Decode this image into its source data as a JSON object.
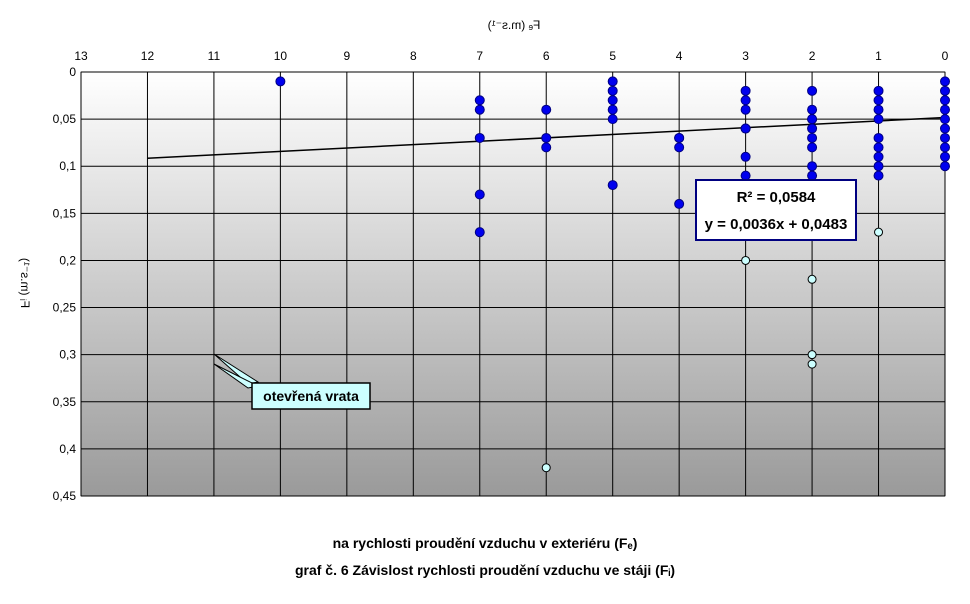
{
  "chart_data": {
    "type": "scatter",
    "x_axis_title": "Fₑ (m.s⁻¹)",
    "y_axis_title": "Fᵢ (m.s⁻¹)",
    "x_ticks": [
      "0",
      "1",
      "2",
      "3",
      "4",
      "5",
      "6",
      "7",
      "8",
      "9",
      "10",
      "11",
      "12",
      "13"
    ],
    "y_ticks": [
      "0",
      "0,05",
      "0,1",
      "0,15",
      "0,2",
      "0,25",
      "0,3",
      "0,35",
      "0,4",
      "0,45"
    ],
    "xlim": [
      0,
      13
    ],
    "ylim": [
      0,
      0.45
    ],
    "y_inverted": true,
    "x_axis_position": "top",
    "grid": true,
    "series": [
      {
        "color": "#0000ee",
        "x": [
          0,
          0,
          0,
          0,
          0,
          0,
          0,
          0,
          0,
          0,
          1,
          1,
          1,
          1,
          1,
          1,
          1,
          1,
          1,
          2,
          2,
          2,
          2,
          2,
          2,
          2,
          2,
          2,
          2,
          2,
          3,
          3,
          3,
          3,
          3,
          3,
          3,
          3,
          3,
          4,
          4,
          4,
          4,
          5,
          5,
          5,
          5,
          5,
          5,
          6,
          6,
          6,
          7,
          7,
          7,
          7,
          7,
          10
        ],
        "y": [
          0.01,
          0.02,
          0.03,
          0.04,
          0.05,
          0.06,
          0.07,
          0.08,
          0.09,
          0.1,
          0.02,
          0.03,
          0.04,
          0.05,
          0.07,
          0.08,
          0.09,
          0.1,
          0.11,
          0.02,
          0.04,
          0.05,
          0.06,
          0.07,
          0.1,
          0.12,
          0.13,
          0.05,
          0.08,
          0.11,
          0.02,
          0.03,
          0.04,
          0.06,
          0.09,
          0.11,
          0.12,
          0.13,
          0.06,
          0.07,
          0.08,
          0.14,
          0.07,
          0.01,
          0.02,
          0.03,
          0.04,
          0.05,
          0.12,
          0.04,
          0.07,
          0.08,
          0.03,
          0.04,
          0.07,
          0.13,
          0.17,
          0.01
        ]
      },
      {
        "color": "#ccffff",
        "x": [
          1,
          2,
          2,
          2,
          3,
          6
        ],
        "y": [
          0.17,
          0.22,
          0.3,
          0.31,
          0.2,
          0.42
        ]
      }
    ],
    "trendline": {
      "slope": 0.0036,
      "intercept": 0.0483,
      "x_range": [
        0,
        12
      ]
    },
    "equation": "y = 0,0036x + 0,0483",
    "r2": "R² = 0,0584",
    "annotation": "otevřená vrata",
    "caption_line1": "na rychlosti proudění vzduchu v exteriéru (Fₑ)",
    "caption_line2": "graf č. 6 Závislost rychlosti proudění vzduchu ve stáji (Fᵢ)"
  }
}
